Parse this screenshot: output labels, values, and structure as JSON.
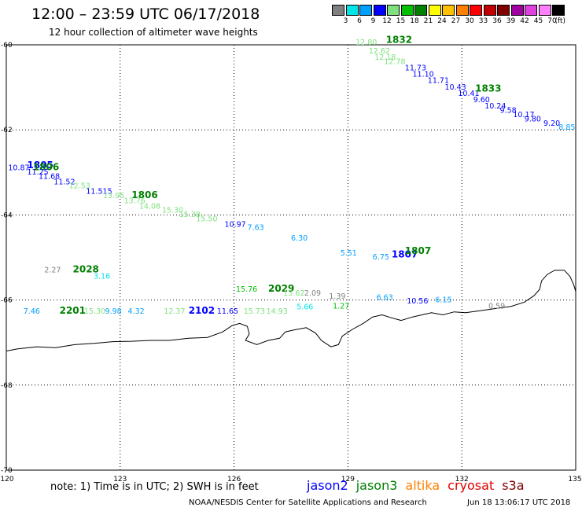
{
  "header": {
    "title": "12:00 – 23:59 UTC 06/17/2018",
    "subtitle": "12 hour collection of altimeter wave heights"
  },
  "color_scale": {
    "unit": "(ft)",
    "items": [
      {
        "label": "3",
        "color": "#808080"
      },
      {
        "label": "6",
        "color": "#00e5e5"
      },
      {
        "label": "9",
        "color": "#00a0ff"
      },
      {
        "label": "12",
        "color": "#0000ff"
      },
      {
        "label": "15",
        "color": "#80e080"
      },
      {
        "label": "18",
        "color": "#00c000"
      },
      {
        "label": "21",
        "color": "#008000"
      },
      {
        "label": "24",
        "color": "#ffff00"
      },
      {
        "label": "27",
        "color": "#ffc000"
      },
      {
        "label": "30",
        "color": "#ff8000"
      },
      {
        "label": "33",
        "color": "#ff0000"
      },
      {
        "label": "36",
        "color": "#c00000"
      },
      {
        "label": "39",
        "color": "#800000"
      },
      {
        "label": "42",
        "color": "#a000a0"
      },
      {
        "label": "45",
        "color": "#e040e0"
      },
      {
        "label": "70",
        "color": "#ff80ff"
      },
      {
        "label": "",
        "color": "#000000"
      }
    ]
  },
  "map": {
    "lon_range": [
      120,
      135
    ],
    "lat_range": [
      -70,
      -60
    ],
    "lon_ticks": [
      "120",
      "123",
      "126",
      "129",
      "132",
      "135"
    ],
    "lat_ticks": [
      "-60",
      "-62",
      "-64",
      "-66",
      "-68",
      "-70"
    ],
    "grid": true,
    "coastline_color": "#000000"
  },
  "chart_data": {
    "type": "scatter",
    "annotations": [
      {
        "text": "12.80",
        "lon": 129.2,
        "lat": -60.0,
        "color": "#80e080"
      },
      {
        "text": "1832",
        "lon": 130.0,
        "lat": -59.95,
        "color": "#008000"
      },
      {
        "text": "12.62",
        "lon": 129.55,
        "lat": -60.2,
        "color": "#80e080"
      },
      {
        "text": "12.18",
        "lon": 129.7,
        "lat": -60.35,
        "color": "#80e080"
      },
      {
        "text": "12.78",
        "lon": 129.95,
        "lat": -60.45,
        "color": "#80e080"
      },
      {
        "text": "11.73",
        "lon": 130.5,
        "lat": -60.6,
        "color": "#0000ff"
      },
      {
        "text": "11.10",
        "lon": 130.7,
        "lat": -60.75,
        "color": "#0000ff"
      },
      {
        "text": "11.71",
        "lon": 131.1,
        "lat": -60.9,
        "color": "#0000ff"
      },
      {
        "text": "10.43",
        "lon": 131.55,
        "lat": -61.05,
        "color": "#0000ff"
      },
      {
        "text": "10.41",
        "lon": 131.9,
        "lat": -61.2,
        "color": "#0000ff"
      },
      {
        "text": "1833",
        "lon": 132.35,
        "lat": -61.1,
        "color": "#008000"
      },
      {
        "text": "9.60",
        "lon": 132.3,
        "lat": -61.35,
        "color": "#0000ff"
      },
      {
        "text": "10.24",
        "lon": 132.6,
        "lat": -61.5,
        "color": "#0000ff"
      },
      {
        "text": "9.58",
        "lon": 133.0,
        "lat": -61.6,
        "color": "#0000ff"
      },
      {
        "text": "10.17",
        "lon": 133.35,
        "lat": -61.7,
        "color": "#0000ff"
      },
      {
        "text": "9.80",
        "lon": 133.65,
        "lat": -61.8,
        "color": "#0000ff"
      },
      {
        "text": "9.20",
        "lon": 134.15,
        "lat": -61.9,
        "color": "#0000ff"
      },
      {
        "text": "8.85",
        "lon": 134.55,
        "lat": -62.0,
        "color": "#00a0ff"
      },
      {
        "text": "10.87",
        "lon": 120.05,
        "lat": -62.95,
        "color": "#0000ff"
      },
      {
        "text": "1805",
        "lon": 120.55,
        "lat": -62.9,
        "color": "#0000ff"
      },
      {
        "text": "1806",
        "lon": 120.7,
        "lat": -62.95,
        "color": "#008000"
      },
      {
        "text": "11.25",
        "lon": 120.55,
        "lat": -63.05,
        "color": "#0000ff"
      },
      {
        "text": "11.68",
        "lon": 120.85,
        "lat": -63.15,
        "color": "#0000ff"
      },
      {
        "text": "11.52",
        "lon": 121.25,
        "lat": -63.28,
        "color": "#0000ff"
      },
      {
        "text": "12.53",
        "lon": 121.65,
        "lat": -63.37,
        "color": "#80e080"
      },
      {
        "text": "11.515",
        "lon": 122.1,
        "lat": -63.5,
        "color": "#0000ff"
      },
      {
        "text": "13.95",
        "lon": 122.55,
        "lat": -63.6,
        "color": "#80e080"
      },
      {
        "text": "1806",
        "lon": 123.3,
        "lat": -63.6,
        "color": "#008000"
      },
      {
        "text": "13.76",
        "lon": 123.1,
        "lat": -63.72,
        "color": "#80e080"
      },
      {
        "text": "14.08",
        "lon": 123.5,
        "lat": -63.85,
        "color": "#80e080"
      },
      {
        "text": "15.30",
        "lon": 124.1,
        "lat": -63.95,
        "color": "#80e080"
      },
      {
        "text": "15.38",
        "lon": 124.55,
        "lat": -64.05,
        "color": "#80e080"
      },
      {
        "text": "15.50",
        "lon": 125.0,
        "lat": -64.15,
        "color": "#80e080"
      },
      {
        "text": "10.97",
        "lon": 125.75,
        "lat": -64.28,
        "color": "#0000ff"
      },
      {
        "text": "7.63",
        "lon": 126.35,
        "lat": -64.35,
        "color": "#00a0ff"
      },
      {
        "text": "6.30",
        "lon": 127.5,
        "lat": -64.6,
        "color": "#00a0ff"
      },
      {
        "text": "5.51",
        "lon": 128.8,
        "lat": -64.95,
        "color": "#00a0ff"
      },
      {
        "text": "1807",
        "lon": 130.15,
        "lat": -65.0,
        "color": "#0000ff"
      },
      {
        "text": "1807",
        "lon": 130.5,
        "lat": -64.92,
        "color": "#008000"
      },
      {
        "text": "6.75",
        "lon": 129.65,
        "lat": -65.05,
        "color": "#00a0ff"
      },
      {
        "text": "2.27",
        "lon": 121.0,
        "lat": -65.35,
        "color": "#808080"
      },
      {
        "text": "2028",
        "lon": 121.75,
        "lat": -65.35,
        "color": "#008000"
      },
      {
        "text": "3.16",
        "lon": 122.3,
        "lat": -65.5,
        "color": "#00e5e5"
      },
      {
        "text": "15.76",
        "lon": 126.05,
        "lat": -65.8,
        "color": "#00c000"
      },
      {
        "text": "2029",
        "lon": 126.9,
        "lat": -65.8,
        "color": "#008000"
      },
      {
        "text": "13.62",
        "lon": 127.3,
        "lat": -65.9,
        "color": "#80e080"
      },
      {
        "text": "2.09",
        "lon": 127.85,
        "lat": -65.9,
        "color": "#808080"
      },
      {
        "text": "1.39",
        "lon": 128.5,
        "lat": -65.97,
        "color": "#808080"
      },
      {
        "text": "6.63",
        "lon": 129.75,
        "lat": -66.0,
        "color": "#00a0ff"
      },
      {
        "text": "10.56",
        "lon": 130.55,
        "lat": -66.08,
        "color": "#0000ff"
      },
      {
        "text": "6.15",
        "lon": 131.3,
        "lat": -66.05,
        "color": "#00a0ff"
      },
      {
        "text": "5.66",
        "lon": 127.65,
        "lat": -66.22,
        "color": "#00e5e5"
      },
      {
        "text": "1.27",
        "lon": 128.6,
        "lat": -66.2,
        "color": "#00c000"
      },
      {
        "text": "0.59",
        "lon": 132.7,
        "lat": -66.2,
        "color": "#808080"
      },
      {
        "text": "7.46",
        "lon": 120.45,
        "lat": -66.32,
        "color": "#00a0ff"
      },
      {
        "text": "2201",
        "lon": 121.4,
        "lat": -66.32,
        "color": "#008000"
      },
      {
        "text": "15.30",
        "lon": 122.05,
        "lat": -66.32,
        "color": "#80e080"
      },
      {
        "text": "9.98",
        "lon": 122.6,
        "lat": -66.32,
        "color": "#00a0ff"
      },
      {
        "text": "4.32",
        "lon": 123.2,
        "lat": -66.32,
        "color": "#00a0ff"
      },
      {
        "text": "12.37",
        "lon": 124.15,
        "lat": -66.32,
        "color": "#80e080"
      },
      {
        "text": "2102",
        "lon": 124.8,
        "lat": -66.32,
        "color": "#0000ff"
      },
      {
        "text": "11.65",
        "lon": 125.55,
        "lat": -66.32,
        "color": "#0000ff"
      },
      {
        "text": "15.73",
        "lon": 126.25,
        "lat": -66.32,
        "color": "#80e080"
      },
      {
        "text": "14.93",
        "lon": 126.85,
        "lat": -66.32,
        "color": "#80e080"
      }
    ]
  },
  "footer": {
    "note": "note:  1) Time is in UTC;  2) SWH is in feet",
    "satellites": [
      {
        "name": "jason2",
        "color": "#0000ff"
      },
      {
        "name": "jason3",
        "color": "#008000"
      },
      {
        "name": "altika",
        "color": "#ff8000"
      },
      {
        "name": "cryosat",
        "color": "#e00000"
      },
      {
        "name": "s3a",
        "color": "#800000"
      }
    ],
    "credit": "NOAA/NESDIS Center for Satellite Applications and Research",
    "timestamp": "Jun 18 13:06:17 UTC 2018"
  }
}
